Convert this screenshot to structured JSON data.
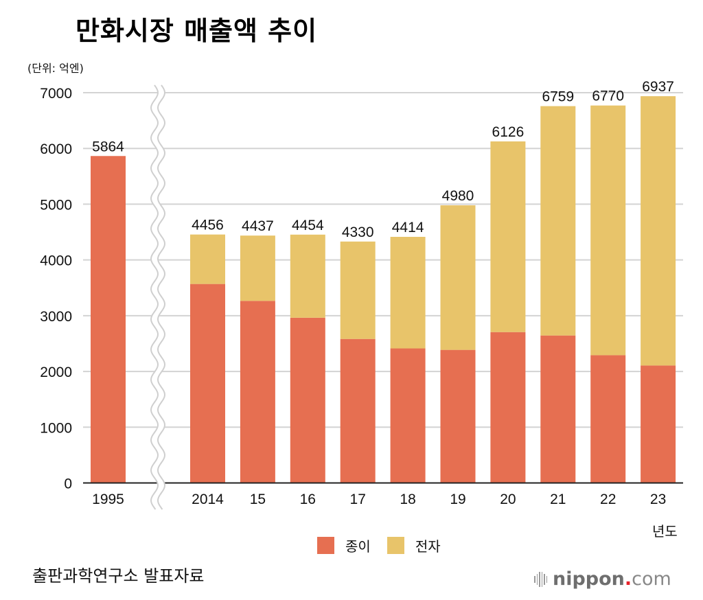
{
  "header": {
    "title": "만화시장 매출액 추이",
    "unit": "(단위: 억엔)"
  },
  "footer": {
    "source": "출판과학연구소 발표자료",
    "logo_brand": "nippon",
    "logo_dot": ".",
    "logo_tld": "com",
    "logo_dot_color": "#e8222a"
  },
  "chart_data": {
    "type": "bar",
    "stacked": true,
    "title": "만화시장 매출액 추이",
    "ylabel": "(단위: 억엔)",
    "xlabel": "년도",
    "ylim": [
      0,
      7000
    ],
    "yticks": [
      0,
      1000,
      2000,
      3000,
      4000,
      5000,
      6000,
      7000
    ],
    "grid": true,
    "axis_break_after_index": 0,
    "legend_position": "bottom-center",
    "categories": [
      "1995",
      "2014",
      "15",
      "16",
      "17",
      "18",
      "19",
      "20",
      "21",
      "22",
      "23"
    ],
    "series": [
      {
        "name": "종이",
        "color": "#e66f51",
        "values": [
          5864,
          3569,
          3266,
          2963,
          2583,
          2413,
          2387,
          2706,
          2645,
          2291,
          2107
        ]
      },
      {
        "name": "전자",
        "color": "#e8c46a",
        "values": [
          0,
          887,
          1171,
          1491,
          1747,
          2001,
          2593,
          3420,
          4114,
          4479,
          4830
        ]
      }
    ],
    "totals": [
      5864,
      4456,
      4437,
      4454,
      4330,
      4414,
      4980,
      6126,
      6759,
      6770,
      6937
    ]
  }
}
